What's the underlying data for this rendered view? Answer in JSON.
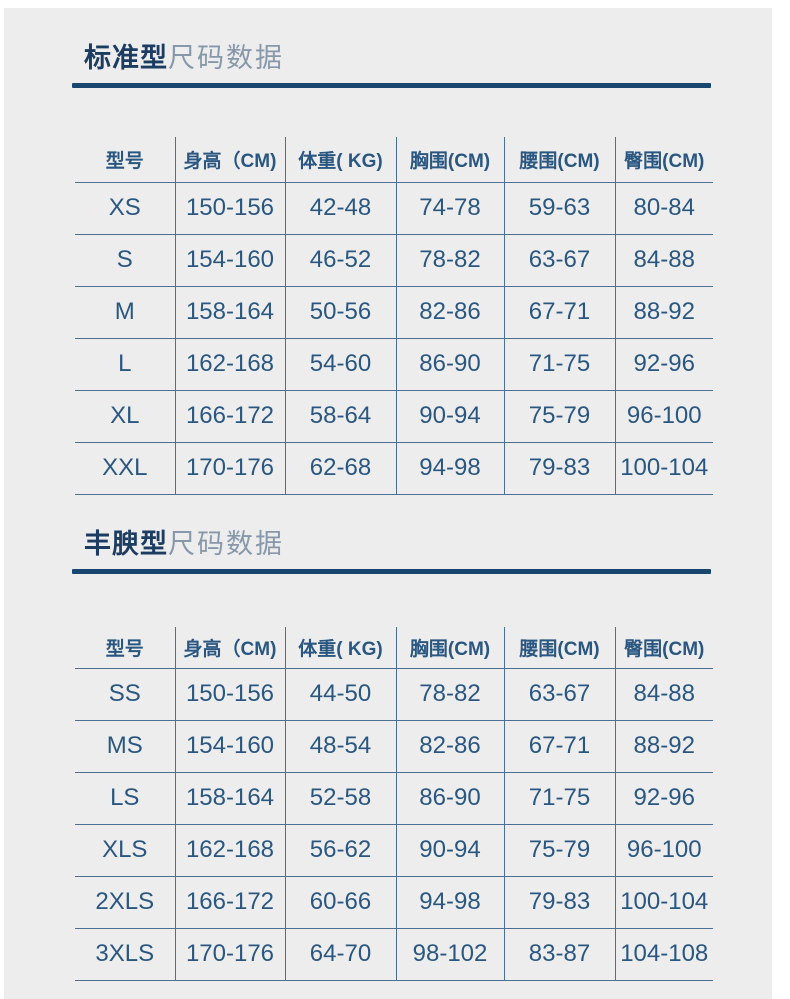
{
  "page": {
    "panel_color": "#ededed",
    "accent_dark": "#1c3d61",
    "underline_color": "#19466f",
    "grid_line_color": "#4c7094",
    "table_text_color": "#2a5781",
    "title_light_color": "#8898ab"
  },
  "sections": [
    {
      "title_bold": "标准型",
      "title_light": "尺码数据",
      "table": {
        "headers": [
          "型号",
          "身高（CM)",
          "体重( KG)",
          "胸围(CM)",
          "腰围(CM)",
          "臀围(CM)"
        ],
        "rows": [
          [
            "XS",
            "150-156",
            "42-48",
            "74-78",
            "59-63",
            "80-84"
          ],
          [
            "S",
            "154-160",
            "46-52",
            "78-82",
            "63-67",
            "84-88"
          ],
          [
            "M",
            "158-164",
            "50-56",
            "82-86",
            "67-71",
            "88-92"
          ],
          [
            "L",
            "162-168",
            "54-60",
            "86-90",
            "71-75",
            "92-96"
          ],
          [
            "XL",
            "166-172",
            "58-64",
            "90-94",
            "75-79",
            "96-100"
          ],
          [
            "XXL",
            "170-176",
            "62-68",
            "94-98",
            "79-83",
            "100-104"
          ]
        ]
      }
    },
    {
      "title_bold": "丰腴型",
      "title_light": "尺码数据",
      "table": {
        "headers": [
          "型号",
          "身高（CM)",
          "体重( KG)",
          "胸围(CM)",
          "腰围(CM)",
          "臀围(CM)"
        ],
        "rows": [
          [
            "SS",
            "150-156",
            "44-50",
            "78-82",
            "63-67",
            "84-88"
          ],
          [
            "MS",
            "154-160",
            "48-54",
            "82-86",
            "67-71",
            "88-92"
          ],
          [
            "LS",
            "158-164",
            "52-58",
            "86-90",
            "71-75",
            "92-96"
          ],
          [
            "XLS",
            "162-168",
            "56-62",
            "90-94",
            "75-79",
            "96-100"
          ],
          [
            "2XLS",
            "166-172",
            "60-66",
            "94-98",
            "79-83",
            "100-104"
          ],
          [
            "3XLS",
            "170-176",
            "64-70",
            "98-102",
            "83-87",
            "104-108"
          ]
        ]
      }
    }
  ]
}
